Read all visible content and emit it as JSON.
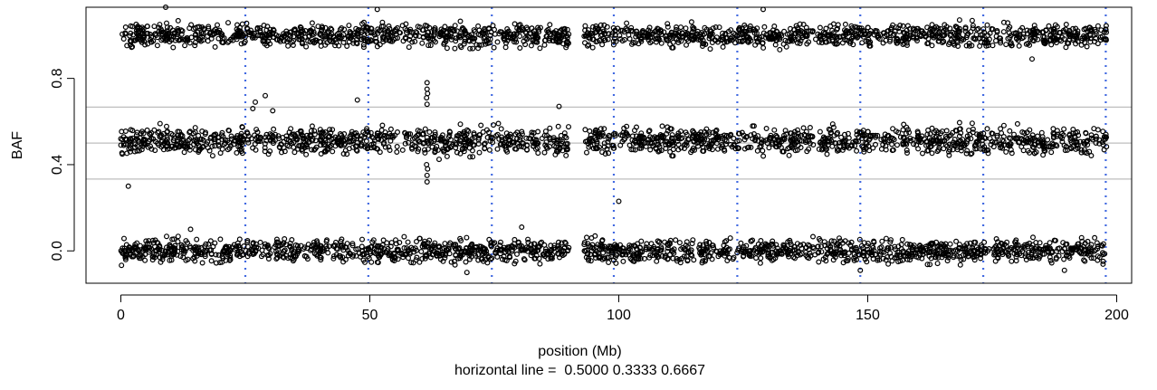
{
  "chart_data": {
    "type": "scatter",
    "title": "",
    "xlabel": "position (Mb)",
    "ylabel": "BAF",
    "caption": "horizontal line =  0.5000 0.3333 0.6667",
    "xlim": [
      -7,
      203
    ],
    "ylim": [
      -0.15,
      1.13
    ],
    "x_ticks": [
      0,
      50,
      100,
      150,
      200
    ],
    "x_tick_labels": [
      "0",
      "50",
      "100",
      "150",
      "200"
    ],
    "y_ticks": [
      0.0,
      0.4,
      0.8
    ],
    "y_tick_labels": [
      "0.0",
      "0.4",
      "0.8"
    ],
    "grid": false,
    "legend": "none",
    "horizontal_lines": [
      0.5,
      0.3333,
      0.6667
    ],
    "horizontal_line_color": "#bebebe",
    "segment_boundaries_mb": [
      25,
      49.7,
      74.5,
      99,
      123.8,
      148.5,
      173.2,
      197.8
    ],
    "segment_boundary_color": "#4169e1",
    "marker": "open-circle",
    "marker_color": "#000000",
    "data_extent_mb": [
      0,
      198
    ],
    "gap_mb": [
      90,
      93
    ],
    "bands": [
      {
        "name": "BAF band near 0",
        "center": 0.0,
        "spread": 0.025
      },
      {
        "name": "BAF band near 0.5",
        "center": 0.51,
        "spread": 0.03
      },
      {
        "name": "BAF band near 1",
        "center": 1.0,
        "spread": 0.025
      }
    ],
    "outliers": [
      {
        "x": 1.5,
        "y": 0.3
      },
      {
        "x": 26.5,
        "y": 0.66
      },
      {
        "x": 27,
        "y": 0.69
      },
      {
        "x": 29,
        "y": 0.72
      },
      {
        "x": 30.5,
        "y": 0.65
      },
      {
        "x": 47.5,
        "y": 0.7
      },
      {
        "x": 61.5,
        "y": 0.78
      },
      {
        "x": 61.5,
        "y": 0.75
      },
      {
        "x": 61.6,
        "y": 0.73
      },
      {
        "x": 61.4,
        "y": 0.71
      },
      {
        "x": 61.5,
        "y": 0.68
      },
      {
        "x": 61.5,
        "y": 0.35
      },
      {
        "x": 61.5,
        "y": 0.32
      },
      {
        "x": 61.6,
        "y": 0.38
      },
      {
        "x": 61.4,
        "y": 0.4
      },
      {
        "x": 100,
        "y": 0.23
      },
      {
        "x": 88,
        "y": 0.67
      },
      {
        "x": 9,
        "y": 1.13
      },
      {
        "x": 51.5,
        "y": 1.12
      },
      {
        "x": 129,
        "y": 1.12
      },
      {
        "x": 183,
        "y": 0.89
      },
      {
        "x": 69.5,
        "y": -0.1
      },
      {
        "x": 14,
        "y": 0.1
      },
      {
        "x": 80.5,
        "y": 0.11
      },
      {
        "x": 148.5,
        "y": -0.09
      },
      {
        "x": 189.5,
        "y": -0.09
      }
    ]
  }
}
